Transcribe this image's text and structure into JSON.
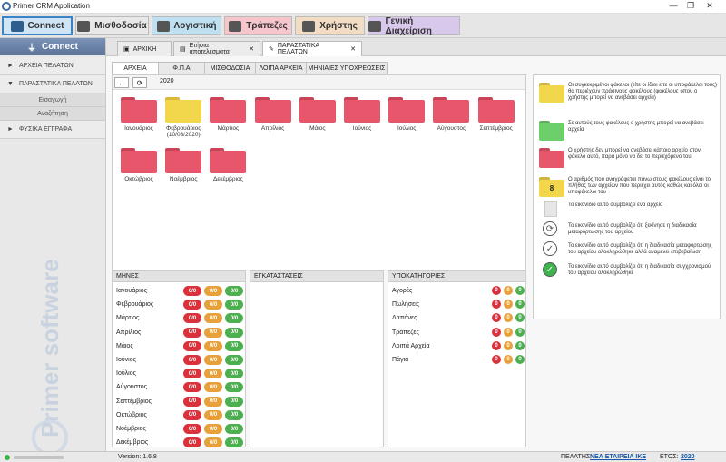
{
  "app": {
    "title": "Primer CRM Application"
  },
  "topnav": [
    {
      "label": "Connect",
      "color": "#cfe5f5",
      "icon": "connect-plug-icon"
    },
    {
      "label": "Μισθοδοσία",
      "color": "#e8e8e8",
      "icon": "payroll-icon"
    },
    {
      "label": "Λογιστική",
      "color": "#bfe0f0",
      "icon": "accounting-icon"
    },
    {
      "label": "Τράπεζες",
      "color": "#f6c6cc",
      "icon": "bank-icon"
    },
    {
      "label": "Χρήστης",
      "color": "#f3dcc4",
      "icon": "user-icon"
    },
    {
      "label": "Γενική Διαχείριση",
      "color": "#d8c8ec",
      "icon": "admin-icon"
    }
  ],
  "sidebar": {
    "header": "Connect",
    "items": [
      {
        "label": "ΑΡΧΕΙΑ ΠΕΛΑΤΩΝ"
      },
      {
        "label": "ΠΑΡΑΣΤΑΤΙΚΑ ΠΕΛΑΤΩΝ"
      },
      {
        "label": "Εισαγωγή"
      },
      {
        "label": "Αναζήτηση"
      },
      {
        "label": "ΦΥΣΙΚΑ ΕΓΓΡΑΦΑ"
      }
    ],
    "watermark": "Primer software"
  },
  "doctabs": [
    {
      "label": "ΑΡΧΙΚΗ"
    },
    {
      "label": "Ετήσια αποτελέσματα",
      "close": "✕"
    },
    {
      "label": "ΠΑΡΑΣΤΑΤΙΚΑ ΠΕΛΑΤΩΝ",
      "close": "✕"
    }
  ],
  "subtabs": [
    "ΑΡΧΕΙΑ",
    "Φ.Π.Α",
    "ΜΙΣΘΟΔΟΣΙΑ",
    "ΛΟΙΠΑ ΑΡΧΕΙΑ",
    "ΜΗΝΙΑΙΕΣ ΥΠΟΧΡΕΩΣΕΙΣ"
  ],
  "path": "2020",
  "folders": [
    {
      "label": "Ιανουάριος",
      "color": "#e8566b"
    },
    {
      "label": "Φεβρουάριος (10/03/2020)",
      "color": "#f2d64c"
    },
    {
      "label": "Μάρτιος",
      "color": "#e8566b"
    },
    {
      "label": "Απρίλιος",
      "color": "#e8566b"
    },
    {
      "label": "Μάιος",
      "color": "#e8566b"
    },
    {
      "label": "Ιούνιος",
      "color": "#e8566b"
    },
    {
      "label": "Ιούλιος",
      "color": "#e8566b"
    },
    {
      "label": "Αύγουστος",
      "color": "#e8566b"
    },
    {
      "label": "Σεπτέμβριος",
      "color": "#e8566b"
    },
    {
      "label": "Οκτώβριος",
      "color": "#e8566b"
    },
    {
      "label": "Νοέμβριος",
      "color": "#e8566b"
    },
    {
      "label": "Δεκέμβριος",
      "color": "#e8566b"
    }
  ],
  "legend": [
    {
      "icon": "yellow-folder-icon",
      "text": "Οι συγκεκριμένοι φάκελοι (είτε οι ίδιοι είτε οι υποφάκελοι τους) θα περιέχουν πράσινους φακέλους (φακέλους όπου ο χρήστης μπορεί να ανεβάσει αρχεία)"
    },
    {
      "icon": "green-folder-icon",
      "text": "Σε αυτούς τους φακέλους ο χρήστης μπορεί να ανεβάσει αρχεία"
    },
    {
      "icon": "red-folder-icon",
      "text": "Ο χρήστης δεν μπορεί να ανεβάσει κάποιο αρχείο στον φάκελο αυτό, παρά μόνο να δει το περιεχόμενο του"
    },
    {
      "icon": "numbered-folder-icon",
      "badge": "8",
      "text": "Ο αριθμός που αναγράφεται πάνω στους φακέλους είναι το πλήθος των αρχείων που περιέχει αυτός καθώς και όλοι οι υποφάκελοι του"
    },
    {
      "icon": "file-icon",
      "text": "Το εικονίδιο αυτό συμβολίζει ένα αρχείο"
    },
    {
      "icon": "sync-icon",
      "text": "Το εικονίδιο αυτό συμβολίζει ότι ξεκίνησε η διαδικασία μεταφόρτωσης του αρχείου"
    },
    {
      "icon": "check-pending-icon",
      "text": "Το εικονίδιο αυτό συμβολίζει ότι η διαδικασία μεταφόρτωσης του αρχείου ολοκληρώθηκε αλλά αναμένει επιβεβαίωση"
    },
    {
      "icon": "check-done-icon",
      "text": "Το εικονίδιο αυτό συμβολίζει ότι η διαδικασία συγχρονισμού του αρχείου ολοκληρώθηκε"
    }
  ],
  "months_grid": {
    "header": "ΜΗΝΕΣ",
    "rows": [
      {
        "name": "Ιανουάριος",
        "r": "0/0",
        "o": "0/0",
        "g": "0/0"
      },
      {
        "name": "Φεβρουάριος",
        "r": "0/0",
        "o": "0/0",
        "g": "0/0"
      },
      {
        "name": "Μάρτιος",
        "r": "0/0",
        "o": "0/0",
        "g": "0/0"
      },
      {
        "name": "Απρίλιος",
        "r": "0/0",
        "o": "0/0",
        "g": "0/0"
      },
      {
        "name": "Μάιος",
        "r": "0/0",
        "o": "0/0",
        "g": "0/0"
      },
      {
        "name": "Ιούνιος",
        "r": "0/0",
        "o": "0/0",
        "g": "0/0"
      },
      {
        "name": "Ιούλιος",
        "r": "0/0",
        "o": "0/0",
        "g": "0/0"
      },
      {
        "name": "Αύγουστος",
        "r": "0/0",
        "o": "0/0",
        "g": "0/0"
      },
      {
        "name": "Σεπτέμβριος",
        "r": "0/0",
        "o": "0/0",
        "g": "0/0"
      },
      {
        "name": "Οκτώβριος",
        "r": "0/0",
        "o": "0/0",
        "g": "0/0"
      },
      {
        "name": "Νοέμβριος",
        "r": "0/0",
        "o": "0/0",
        "g": "0/0"
      },
      {
        "name": "Δεκέμβριος",
        "r": "0/0",
        "o": "0/0",
        "g": "0/0"
      }
    ]
  },
  "install_grid": {
    "header": "ΕΓΚΑΤΑΣΤΑΣΕΙΣ"
  },
  "subcat_grid": {
    "header": "ΥΠΟΚΑΤΗΓΟΡΙΕΣ",
    "rows": [
      {
        "name": "Αγορές",
        "r": "0",
        "o": "0",
        "g": "0"
      },
      {
        "name": "Πωλήσεις",
        "r": "0",
        "o": "0",
        "g": "0"
      },
      {
        "name": "Δαπάνες",
        "r": "0",
        "o": "0",
        "g": "0"
      },
      {
        "name": "Τράπεζες",
        "r": "0",
        "o": "0",
        "g": "0"
      },
      {
        "name": "Λοιπά Αρχεία",
        "r": "0",
        "o": "0",
        "g": "0"
      },
      {
        "name": "Πάγια",
        "r": "0",
        "o": "0",
        "g": "0"
      }
    ]
  },
  "status": {
    "version": "Version: 1.6.8",
    "customer_label": "ΠΕΛΑΤΗΣ:",
    "customer": "ΝΕΑ ΕΤΑΙΡΕΙΑ ΙΚΕ",
    "year_label": "ΕΤΟΣ:",
    "year": "2020"
  }
}
